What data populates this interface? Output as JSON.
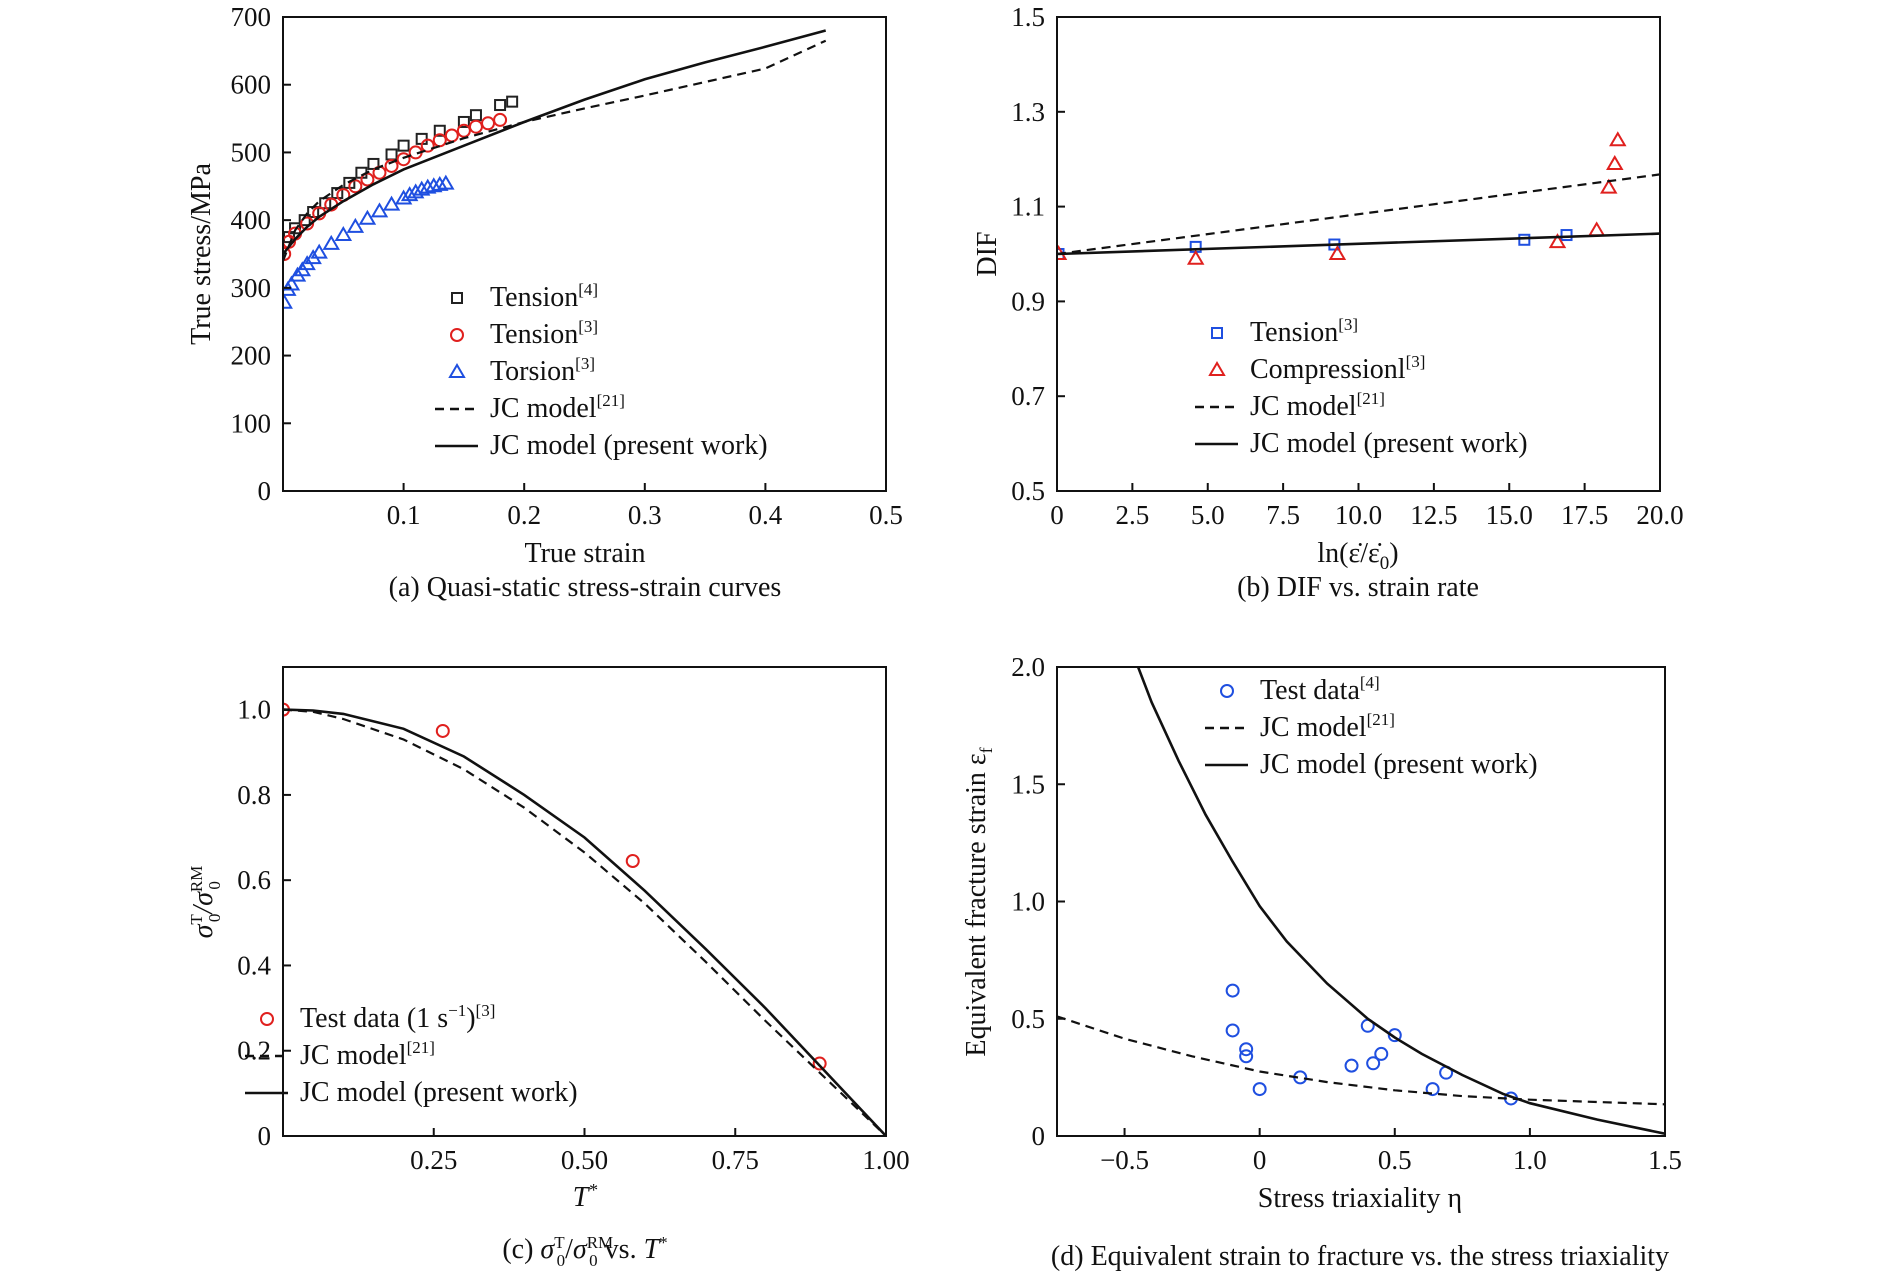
{
  "chart_data": [
    {
      "id": "a",
      "type": "scatter",
      "caption": "(a) Quasi-static stress-strain curves",
      "xlabel": "True strain",
      "ylabel": "True stress/MPa",
      "xlim": [
        0,
        0.5
      ],
      "ylim": [
        0,
        700
      ],
      "xticks": [
        0.1,
        0.2,
        0.3,
        0.4,
        0.5
      ],
      "xtick_labels": [
        "0.1",
        "0.2",
        "0.3",
        "0.4",
        "0.5"
      ],
      "yticks": [
        0,
        100,
        200,
        300,
        400,
        500,
        600,
        700
      ],
      "ytick_labels": [
        "0",
        "100",
        "200",
        "300",
        "400",
        "500",
        "600",
        "700"
      ],
      "legend_position": "bottom-right",
      "legend": [
        {
          "label": "Tension",
          "sup": "[4]",
          "kind": "square",
          "color": "#222222"
        },
        {
          "label": "Tension",
          "sup": "[3]",
          "kind": "circle",
          "color": "#e0201e"
        },
        {
          "label": "Torsion",
          "sup": "[3]",
          "kind": "triangle",
          "color": "#1f4fe0"
        },
        {
          "label": "JC model",
          "sup": "[21]",
          "kind": "dashed",
          "color": "#111111"
        },
        {
          "label": "JC model (present work)",
          "sup": "",
          "kind": "solid",
          "color": "#111111"
        }
      ],
      "series": [
        {
          "kind": "square",
          "color": "#222222",
          "points": [
            [
              0.005,
              375
            ],
            [
              0.01,
              388
            ],
            [
              0.018,
              400
            ],
            [
              0.025,
              412
            ],
            [
              0.035,
              425
            ],
            [
              0.045,
              440
            ],
            [
              0.055,
              455
            ],
            [
              0.065,
              470
            ],
            [
              0.075,
              483
            ],
            [
              0.09,
              497
            ],
            [
              0.1,
              510
            ],
            [
              0.115,
              520
            ],
            [
              0.13,
              532
            ],
            [
              0.15,
              545
            ],
            [
              0.16,
              555
            ],
            [
              0.18,
              570
            ],
            [
              0.19,
              575
            ]
          ]
        },
        {
          "kind": "circle",
          "color": "#e0201e",
          "points": [
            [
              0.001,
              350
            ],
            [
              0.005,
              368
            ],
            [
              0.01,
              380
            ],
            [
              0.02,
              395
            ],
            [
              0.03,
              410
            ],
            [
              0.04,
              423
            ],
            [
              0.05,
              437
            ],
            [
              0.06,
              450
            ],
            [
              0.07,
              460
            ],
            [
              0.08,
              470
            ],
            [
              0.09,
              480
            ],
            [
              0.1,
              490
            ],
            [
              0.11,
              500
            ],
            [
              0.12,
              510
            ],
            [
              0.13,
              518
            ],
            [
              0.14,
              525
            ],
            [
              0.15,
              532
            ],
            [
              0.16,
              538
            ],
            [
              0.17,
              543
            ],
            [
              0.18,
              548
            ]
          ]
        },
        {
          "kind": "triangle",
          "color": "#1f4fe0",
          "points": [
            [
              0.001,
              278
            ],
            [
              0.004,
              297
            ],
            [
              0.007,
              305
            ],
            [
              0.012,
              318
            ],
            [
              0.016,
              326
            ],
            [
              0.02,
              335
            ],
            [
              0.025,
              344
            ],
            [
              0.03,
              352
            ],
            [
              0.04,
              365
            ],
            [
              0.05,
              378
            ],
            [
              0.06,
              390
            ],
            [
              0.07,
              402
            ],
            [
              0.08,
              413
            ],
            [
              0.09,
              423
            ],
            [
              0.1,
              432
            ],
            [
              0.105,
              437
            ],
            [
              0.11,
              441
            ],
            [
              0.115,
              445
            ],
            [
              0.12,
              448
            ],
            [
              0.125,
              450
            ],
            [
              0.13,
              452
            ],
            [
              0.135,
              454
            ]
          ]
        },
        {
          "kind": "dashed",
          "color": "#111111",
          "points": [
            [
              0,
              340
            ],
            [
              0.01,
              385
            ],
            [
              0.02,
              410
            ],
            [
              0.03,
              428
            ],
            [
              0.05,
              452
            ],
            [
              0.075,
              475
            ],
            [
              0.1,
              492
            ],
            [
              0.15,
              521
            ],
            [
              0.2,
              545
            ],
            [
              0.25,
              565
            ],
            [
              0.3,
              584
            ],
            [
              0.35,
              604
            ],
            [
              0.4,
              624
            ],
            [
              0.45,
              665
            ]
          ]
        },
        {
          "kind": "solid",
          "color": "#111111",
          "points": [
            [
              0,
              350
            ],
            [
              0.01,
              372
            ],
            [
              0.02,
              390
            ],
            [
              0.03,
              405
            ],
            [
              0.05,
              428
            ],
            [
              0.075,
              453
            ],
            [
              0.1,
              475
            ],
            [
              0.15,
              510
            ],
            [
              0.2,
              545
            ],
            [
              0.25,
              578
            ],
            [
              0.3,
              608
            ],
            [
              0.35,
              633
            ],
            [
              0.4,
              656
            ],
            [
              0.45,
              680
            ]
          ]
        }
      ]
    },
    {
      "id": "b",
      "type": "scatter",
      "caption": "(b) DIF vs. strain rate",
      "xlabel": "ln(ε̇/ε̇",
      "xlabel_sub": "0",
      "xlabel_end": ")",
      "ylabel": "DIF",
      "xlim": [
        0,
        20
      ],
      "ylim": [
        0.5,
        1.5
      ],
      "xticks": [
        0,
        2.5,
        5,
        7.5,
        10,
        12.5,
        15,
        17.5,
        20
      ],
      "xtick_labels": [
        "0",
        "2.5",
        "5.0",
        "7.5",
        "10.0",
        "12.5",
        "15.0",
        "17.5",
        "20.0"
      ],
      "yticks": [
        0.5,
        0.7,
        0.9,
        1.1,
        1.3,
        1.5
      ],
      "ytick_labels": [
        "0.5",
        "0.7",
        "0.9",
        "1.1",
        "1.3",
        "1.5"
      ],
      "legend_position": "bottom-center",
      "legend": [
        {
          "label": "Tension",
          "sup": "[3]",
          "kind": "square",
          "color": "#1f4fe0"
        },
        {
          "label": "Compressionl",
          "sup": "[3]",
          "kind": "triangle",
          "color": "#e0201e"
        },
        {
          "label": "JC model",
          "sup": "[21]",
          "kind": "dashed",
          "color": "#111111"
        },
        {
          "label": "JC model (present work)",
          "sup": "",
          "kind": "solid",
          "color": "#111111"
        }
      ],
      "series": [
        {
          "kind": "square",
          "color": "#1f4fe0",
          "points": [
            [
              0.05,
              1.0
            ],
            [
              4.6,
              1.015
            ],
            [
              9.2,
              1.02
            ],
            [
              15.5,
              1.03
            ],
            [
              16.9,
              1.04
            ]
          ]
        },
        {
          "kind": "triangle",
          "color": "#e0201e",
          "points": [
            [
              0.05,
              1.0
            ],
            [
              4.6,
              0.99
            ],
            [
              9.3,
              1.0
            ],
            [
              16.6,
              1.025
            ],
            [
              17.9,
              1.05
            ],
            [
              18.3,
              1.14
            ],
            [
              18.5,
              1.19
            ],
            [
              18.6,
              1.24
            ]
          ]
        },
        {
          "kind": "dashed",
          "color": "#111111",
          "points": [
            [
              0,
              1.0
            ],
            [
              20,
              1.168
            ]
          ]
        },
        {
          "kind": "solid",
          "color": "#111111",
          "points": [
            [
              0,
              1.0
            ],
            [
              20,
              1.043
            ]
          ]
        }
      ]
    },
    {
      "id": "c",
      "type": "scatter",
      "caption_pre": "(c) ",
      "caption_post": " vs. ",
      "xlabel": "T",
      "xlabel_sup": "*",
      "ylabel_sym": "σ",
      "ylabel_sup1": "T",
      "ylabel_sub": "0",
      "ylabel_sup2": "RM",
      "xlim": [
        0,
        1
      ],
      "ylim": [
        0,
        1.1
      ],
      "xticks": [
        0.25,
        0.5,
        0.75,
        1.0
      ],
      "xtick_labels": [
        "0.25",
        "0.50",
        "0.75",
        "1.00"
      ],
      "yticks": [
        0,
        0.2,
        0.4,
        0.6,
        0.8,
        1.0
      ],
      "ytick_labels": [
        "0",
        "0.2",
        "0.4",
        "0.6",
        "0.8",
        "1.0"
      ],
      "legend_position": "bottom-left",
      "legend": [
        {
          "label": "Test data (1 s",
          "sup_inline": "−1",
          "label_end": ")",
          "sup": "[3]",
          "kind": "circle",
          "color": "#e0201e"
        },
        {
          "label": "JC model",
          "sup": "[21]",
          "kind": "dashed",
          "color": "#111111"
        },
        {
          "label": "JC model (present work)",
          "sup": "",
          "kind": "solid",
          "color": "#111111"
        }
      ],
      "series": [
        {
          "kind": "circle",
          "color": "#e0201e",
          "points": [
            [
              0.0,
              1.0
            ],
            [
              0.265,
              0.95
            ],
            [
              0.58,
              0.645
            ],
            [
              0.89,
              0.17
            ]
          ]
        },
        {
          "kind": "dashed",
          "color": "#111111",
          "points": [
            [
              0,
              1.0
            ],
            [
              0.05,
              0.995
            ],
            [
              0.1,
              0.978
            ],
            [
              0.2,
              0.93
            ],
            [
              0.3,
              0.86
            ],
            [
              0.4,
              0.77
            ],
            [
              0.5,
              0.665
            ],
            [
              0.6,
              0.545
            ],
            [
              0.7,
              0.41
            ],
            [
              0.8,
              0.27
            ],
            [
              0.9,
              0.135
            ],
            [
              1.0,
              0.0
            ]
          ]
        },
        {
          "kind": "solid",
          "color": "#111111",
          "points": [
            [
              0,
              1.0
            ],
            [
              0.05,
              0.998
            ],
            [
              0.1,
              0.99
            ],
            [
              0.2,
              0.955
            ],
            [
              0.3,
              0.89
            ],
            [
              0.4,
              0.8
            ],
            [
              0.5,
              0.7
            ],
            [
              0.6,
              0.575
            ],
            [
              0.7,
              0.44
            ],
            [
              0.8,
              0.3
            ],
            [
              0.9,
              0.15
            ],
            [
              1.0,
              0.0
            ]
          ]
        }
      ]
    },
    {
      "id": "d",
      "type": "scatter",
      "caption": "(d) Equivalent strain to fracture vs. the stress triaxiality",
      "xlabel": "Stress triaxiality η",
      "ylabel": "Equivalent fracture strain ε",
      "ylabel_sub": "f",
      "xlim": [
        -0.75,
        1.5
      ],
      "ylim": [
        0,
        2.0
      ],
      "xticks": [
        -0.5,
        0,
        0.5,
        1.0,
        1.5
      ],
      "xtick_labels": [
        "−0.5",
        "0",
        "0.5",
        "1.0",
        "1.5"
      ],
      "yticks": [
        0,
        0.5,
        1.0,
        1.5,
        2.0
      ],
      "ytick_labels": [
        "0",
        "0.5",
        "1.0",
        "1.5",
        "2.0"
      ],
      "legend_position": "top-right",
      "legend": [
        {
          "label": "Test data",
          "sup": "[4]",
          "kind": "circle",
          "color": "#1f4fe0"
        },
        {
          "label": "JC model",
          "sup": "[21]",
          "kind": "dashed",
          "color": "#111111"
        },
        {
          "label": "JC model (present work)",
          "sup": "",
          "kind": "solid",
          "color": "#111111"
        }
      ],
      "series": [
        {
          "kind": "circle",
          "color": "#1f4fe0",
          "points": [
            [
              -0.1,
              0.62
            ],
            [
              -0.1,
              0.45
            ],
            [
              -0.05,
              0.37
            ],
            [
              -0.05,
              0.34
            ],
            [
              0,
              0.2
            ],
            [
              0.15,
              0.25
            ],
            [
              0.34,
              0.3
            ],
            [
              0.4,
              0.47
            ],
            [
              0.42,
              0.31
            ],
            [
              0.45,
              0.35
            ],
            [
              0.5,
              0.43
            ],
            [
              0.64,
              0.2
            ],
            [
              0.69,
              0.27
            ],
            [
              0.93,
              0.16
            ]
          ]
        },
        {
          "kind": "dashed",
          "color": "#111111",
          "points": [
            [
              -0.75,
              0.51
            ],
            [
              -0.5,
              0.415
            ],
            [
              -0.25,
              0.34
            ],
            [
              0,
              0.275
            ],
            [
              0.25,
              0.23
            ],
            [
              0.5,
              0.195
            ],
            [
              0.75,
              0.17
            ],
            [
              1.0,
              0.155
            ],
            [
              1.25,
              0.145
            ],
            [
              1.5,
              0.135
            ]
          ]
        },
        {
          "kind": "solid",
          "color": "#111111",
          "points": [
            [
              -0.45,
              2.0
            ],
            [
              -0.4,
              1.85
            ],
            [
              -0.3,
              1.6
            ],
            [
              -0.2,
              1.37
            ],
            [
              -0.1,
              1.17
            ],
            [
              0,
              0.98
            ],
            [
              0.1,
              0.83
            ],
            [
              0.25,
              0.65
            ],
            [
              0.4,
              0.5
            ],
            [
              0.5,
              0.42
            ],
            [
              0.6,
              0.35
            ],
            [
              0.75,
              0.26
            ],
            [
              0.9,
              0.18
            ],
            [
              1.0,
              0.14
            ],
            [
              1.25,
              0.07
            ],
            [
              1.5,
              0.01
            ]
          ]
        }
      ]
    }
  ]
}
